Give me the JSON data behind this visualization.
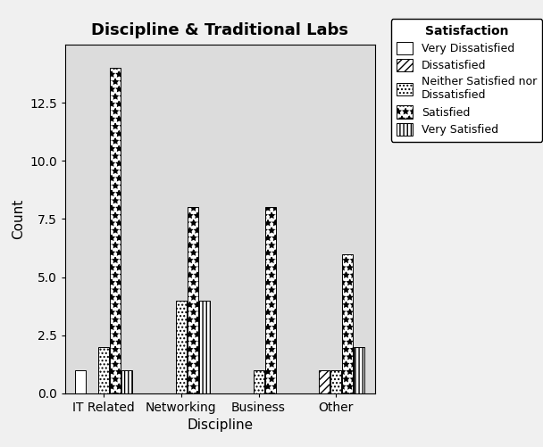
{
  "title": "Discipline & Traditional Labs",
  "xlabel": "Discipline",
  "ylabel": "Count",
  "categories": [
    "IT Related",
    "Networking",
    "Business",
    "Other"
  ],
  "satisfaction_labels": [
    "Very Dissatisfied",
    "Dissatisfied",
    "Neither Satisfied nor\nDissatisfied",
    "Satisfied",
    "Very Satisfied"
  ],
  "legend_title": "Satisfaction",
  "values": {
    "Very Dissatisfied": [
      1,
      0,
      0,
      0
    ],
    "Dissatisfied": [
      0,
      0,
      0,
      1
    ],
    "Neither Satisfied nor\nDissatisfied": [
      2,
      4,
      1,
      1
    ],
    "Satisfied": [
      14,
      8,
      8,
      6
    ],
    "Very Satisfied": [
      1,
      4,
      0,
      2
    ]
  },
  "ylim": [
    0,
    15
  ],
  "yticks": [
    0.0,
    2.5,
    5.0,
    7.5,
    10.0,
    12.5
  ],
  "background_color": "#dcdcdc",
  "fig_background_color": "#f0f0f0",
  "bar_edge_color": "#000000",
  "title_fontsize": 13,
  "axis_label_fontsize": 11,
  "tick_fontsize": 10,
  "legend_fontsize": 9,
  "bar_width": 0.15,
  "hatch_styles": [
    "",
    "////",
    "....",
    "**",
    "||||"
  ],
  "face_colors": [
    "white",
    "white",
    "white",
    "white",
    "white"
  ]
}
